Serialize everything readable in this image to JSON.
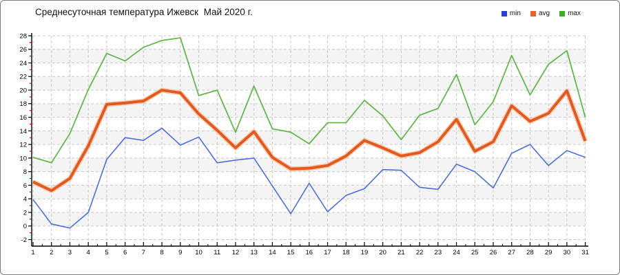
{
  "window": {
    "background": "#ffffff",
    "border_color": "#7c7c7c"
  },
  "header": {
    "title": "Среднесуточная температура Ижевск  Май 2020 г."
  },
  "legend": {
    "position": "top-right",
    "items": [
      {
        "label": "min",
        "color": "#2741d6"
      },
      {
        "label": "avg",
        "color": "#e8622d"
      },
      {
        "label": "max",
        "color": "#38b022"
      }
    ]
  },
  "chart_data": {
    "type": "line",
    "title": "Среднесуточная температура Ижевск  Май 2020 г.",
    "xlabel": "",
    "ylabel": "",
    "x": [
      1,
      2,
      3,
      4,
      5,
      6,
      7,
      8,
      9,
      10,
      11,
      12,
      13,
      14,
      15,
      16,
      17,
      18,
      19,
      20,
      21,
      22,
      23,
      24,
      25,
      26,
      27,
      28,
      29,
      30,
      31
    ],
    "xlim": [
      1,
      31
    ],
    "ylim": [
      -2,
      28
    ],
    "ytick_step": 2,
    "grid": "dashed",
    "gridline_color": "#c9c9c9",
    "band_color": "#f4f4f4",
    "axis_color": "#000000",
    "minor_tick_color_y": "#d40000",
    "legend_position": "top-right",
    "series": [
      {
        "name": "min",
        "color": "#4a6fdc",
        "halo_color": null,
        "width": 1.6,
        "values": [
          3.9,
          0.3,
          -0.3,
          2.0,
          9.8,
          13.0,
          12.6,
          14.4,
          11.9,
          13.1,
          9.3,
          9.7,
          10.0,
          5.9,
          1.8,
          6.3,
          2.1,
          4.5,
          5.5,
          8.3,
          8.2,
          5.7,
          5.4,
          9.1,
          8.0,
          5.6,
          10.7,
          12.0,
          8.9,
          11.1,
          10.1
        ]
      },
      {
        "name": "avg",
        "color": "#e2581f",
        "halo_color": "#f6c3a1",
        "width": 3.8,
        "values": [
          6.5,
          5.2,
          7.0,
          11.8,
          17.9,
          18.1,
          18.4,
          20.0,
          19.6,
          16.5,
          14.1,
          11.5,
          13.9,
          10.1,
          8.4,
          8.5,
          8.9,
          10.3,
          12.6,
          11.5,
          10.3,
          10.8,
          12.4,
          15.7,
          11.0,
          12.4,
          17.7,
          15.4,
          16.6,
          19.9,
          12.5
        ]
      },
      {
        "name": "max",
        "color": "#62b84a",
        "halo_color": null,
        "width": 1.8,
        "values": [
          10.1,
          9.3,
          13.6,
          20.1,
          25.4,
          24.3,
          26.3,
          27.3,
          27.7,
          19.2,
          20.0,
          13.8,
          20.6,
          14.3,
          13.8,
          12.1,
          15.2,
          15.2,
          18.5,
          16.2,
          12.7,
          16.3,
          17.3,
          22.3,
          14.9,
          18.3,
          25.1,
          19.3,
          23.8,
          25.8,
          16.0
        ]
      }
    ]
  }
}
